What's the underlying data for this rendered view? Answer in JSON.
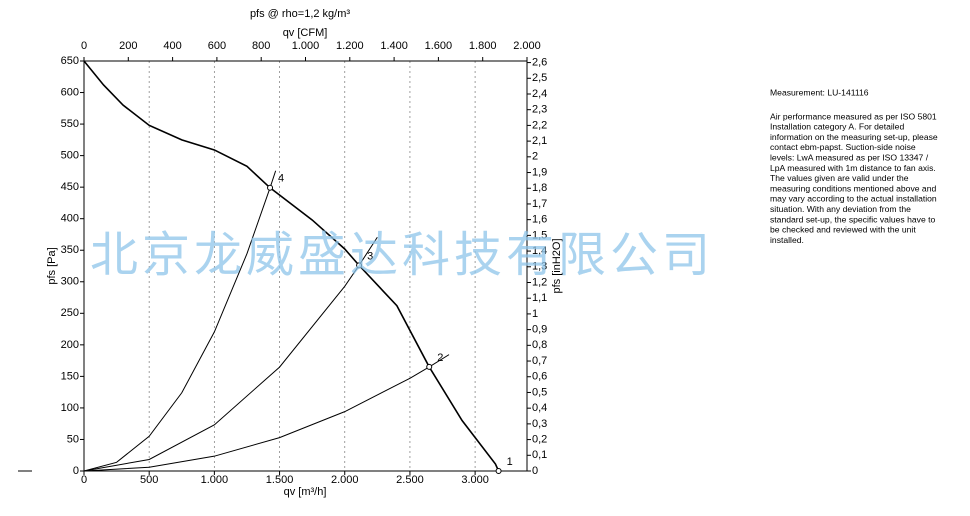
{
  "chart_data": {
    "type": "line",
    "title": "pfs @ rho=1,2 kg/m³",
    "x_label": "qv [m³/h]",
    "x2_label": "qv [CFM]",
    "y_label": "pfs [Pa]",
    "y2_label": "pfs [inH2O]",
    "xlim": [
      0,
      3398
    ],
    "x2lim": [
      0,
      2000
    ],
    "ylim": [
      0,
      650
    ],
    "y2lim": [
      0,
      2.61
    ],
    "xticks": [
      0,
      500,
      {
        "value": 1000,
        "label": "1.000"
      },
      {
        "value": 1500,
        "label": "1.500"
      },
      {
        "value": 2000,
        "label": "2.000"
      },
      {
        "value": 2500,
        "label": "2.500"
      },
      {
        "value": 3000,
        "label": "3.000"
      }
    ],
    "x2ticks": [
      0,
      200,
      400,
      600,
      800,
      {
        "value": 1000,
        "label": "1.000"
      },
      {
        "value": 1200,
        "label": "1.200"
      },
      {
        "value": 1400,
        "label": "1.400"
      },
      {
        "value": 1600,
        "label": "1.600"
      },
      {
        "value": 1800,
        "label": "1.800"
      },
      {
        "value": 2000,
        "label": "2.000"
      }
    ],
    "yticks": [
      0,
      50,
      100,
      150,
      200,
      250,
      300,
      350,
      400,
      450,
      500,
      550,
      600,
      650
    ],
    "y2ticks": [
      0,
      {
        "value": 0.1,
        "label": "0,1"
      },
      {
        "value": 0.2,
        "label": "0,2"
      },
      {
        "value": 0.3,
        "label": "0,3"
      },
      {
        "value": 0.4,
        "label": "0,4"
      },
      {
        "value": 0.5,
        "label": "0,5"
      },
      {
        "value": 0.6,
        "label": "0,6"
      },
      {
        "value": 0.7,
        "label": "0,7"
      },
      {
        "value": 0.8,
        "label": "0,8"
      },
      {
        "value": 0.9,
        "label": "0,9"
      },
      1,
      {
        "value": 1.1,
        "label": "1,1"
      },
      {
        "value": 1.2,
        "label": "1,2"
      },
      {
        "value": 1.3,
        "label": "1,3"
      },
      {
        "value": 1.4,
        "label": "1,4"
      },
      {
        "value": 1.5,
        "label": "1,5"
      },
      {
        "value": 1.6,
        "label": "1,6"
      },
      {
        "value": 1.7,
        "label": "1,7"
      },
      {
        "value": 1.8,
        "label": "1,8"
      },
      {
        "value": 1.9,
        "label": "1,9"
      },
      2,
      {
        "value": 2.1,
        "label": "2,1"
      },
      {
        "value": 2.2,
        "label": "2,2"
      },
      {
        "value": 2.3,
        "label": "2,3"
      },
      {
        "value": 2.4,
        "label": "2,4"
      },
      {
        "value": 2.5,
        "label": "2,5"
      },
      {
        "value": 2.6,
        "label": "2,6"
      }
    ],
    "grid": true,
    "series": [
      {
        "color": "#000000",
        "x": [
          0,
          150,
          300,
          500,
          750,
          1000,
          1250,
          1427,
          1750,
          2000,
          2110,
          2400,
          2648,
          2900,
          3156,
          3180
        ],
        "values": [
          650,
          612,
          580,
          548,
          525,
          509,
          483,
          449,
          398,
          352,
          326,
          262,
          165,
          80,
          11,
          0
        ]
      },
      {
        "color": "#000000",
        "x": [
          0,
          250,
          500,
          750,
          1000,
          1250,
          1427,
          1470
        ],
        "values": [
          0,
          13.8,
          55.1,
          124,
          220.5,
          344.5,
          449,
          476
        ]
      },
      {
        "color": "#000000",
        "x": [
          0,
          500,
          1000,
          1500,
          2000,
          2110,
          2250
        ],
        "values": [
          0,
          18.3,
          73.2,
          164.7,
          292.8,
          326,
          370.6
        ]
      },
      {
        "color": "#000000",
        "x": [
          0,
          500,
          1000,
          1500,
          2000,
          2500,
          2648,
          2800
        ],
        "values": [
          0,
          5.9,
          23.5,
          52.9,
          94.1,
          147,
          165,
          184.5
        ]
      }
    ],
    "operating_points": [
      {
        "label": "1",
        "x": 3180,
        "y": 0
      },
      {
        "label": "2",
        "x": 2648,
        "y": 165
      },
      {
        "label": "3",
        "x": 2110,
        "y": 326
      },
      {
        "label": "4",
        "x": 1427,
        "y": 449
      }
    ]
  },
  "notes": {
    "measurement": "Measurement: LU-141116",
    "lines": [
      "Air performance measured as per ISO 5801",
      "Installation category A. For detailed",
      "information on the measuring set-up, please",
      "contact ebm-papst. Suction-side noise",
      "levels: LwA measured as per ISO 13347 /",
      "LpA measured with 1m distance to fan axis.",
      "The values given are valid under the",
      "measuring conditions mentioned above and",
      "may vary according to the actual installation",
      "situation. With any deviation from the",
      "standard set-up, the specific values have to",
      "be checked and reviewed with the unit",
      "installed."
    ]
  },
  "watermark": "北京龙威盛达科技有限公司"
}
